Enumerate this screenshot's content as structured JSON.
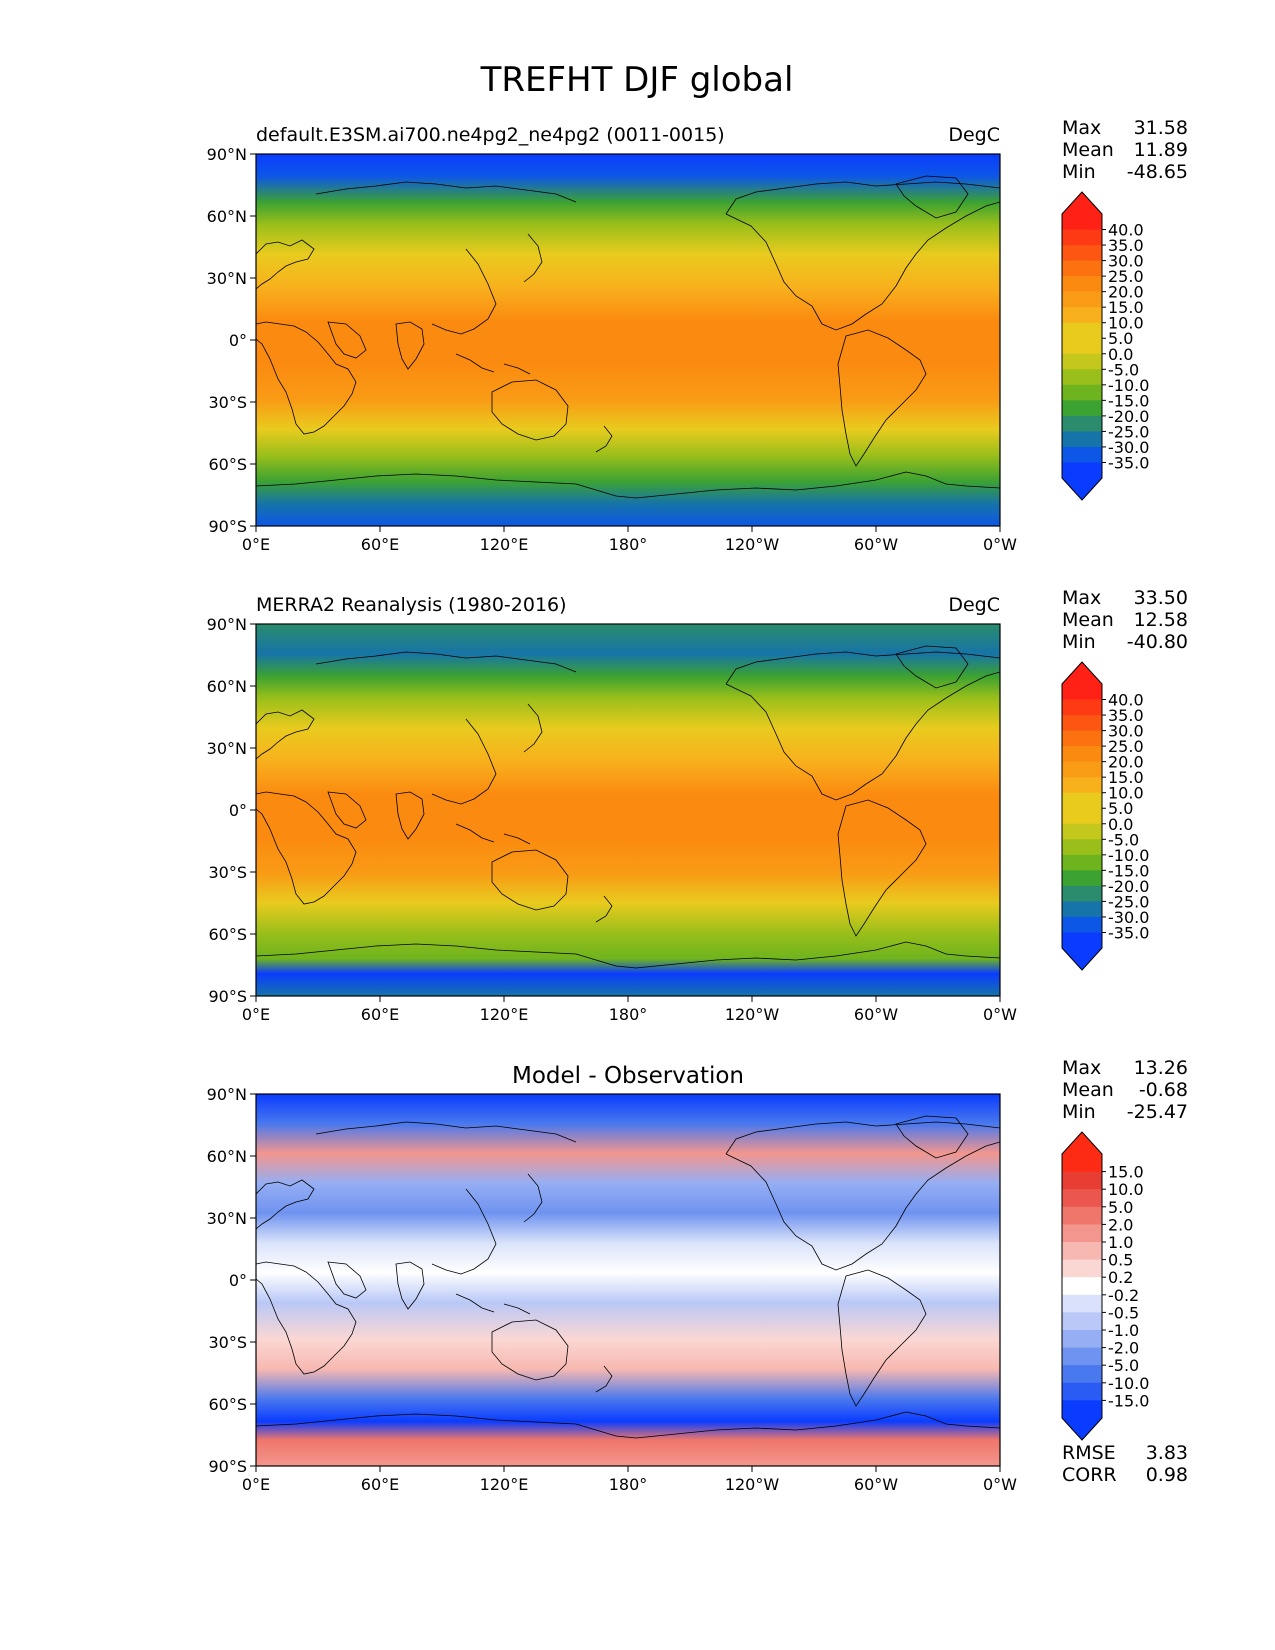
{
  "figure": {
    "title": "TREFHT DJF global"
  },
  "colors": {
    "abs_levels": [
      "#0a3cff",
      "#0d57e6",
      "#1774a8",
      "#2a8c6c",
      "#3ca232",
      "#6eb41e",
      "#9abf1a",
      "#c5c81c",
      "#e9cb1e",
      "#f8b01d",
      "#f99b15",
      "#fb8a10",
      "#fc7110",
      "#fd5512",
      "#fe3a14",
      "#ff2116"
    ],
    "diff_levels": [
      "#0a3cff",
      "#2a5cf5",
      "#4a78ee",
      "#6f93f0",
      "#95aef4",
      "#b9c8f7",
      "#d9e2fa",
      "#ffffff",
      "#fbd7d3",
      "#f7b8b1",
      "#f3968d",
      "#ef766b",
      "#eb574e",
      "#e83d33",
      "#fe2b14"
    ],
    "coast": "#000000"
  },
  "panels": [
    {
      "title_left": "default.E3SM.ai700.ne4pg2_ne4pg2 (0011-0015)",
      "title_center": "",
      "units": "DegC",
      "stats": [
        {
          "label": "Max",
          "value": "31.58"
        },
        {
          "label": "Mean",
          "value": "11.89"
        },
        {
          "label": "Min",
          "value": "-48.65"
        }
      ],
      "colorbar_ticks": [
        "40.0",
        "35.0",
        "30.0",
        "25.0",
        "20.0",
        "15.0",
        "10.0",
        "5.0",
        "0.0",
        "-5.0",
        "-10.0",
        "-15.0",
        "-20.0",
        "-25.0",
        "-30.0",
        "-35.0"
      ],
      "footer_stats": []
    },
    {
      "title_left": "MERRA2 Reanalysis (1980-2016)",
      "title_center": "",
      "units": "DegC",
      "stats": [
        {
          "label": "Max",
          "value": "33.50"
        },
        {
          "label": "Mean",
          "value": "12.58"
        },
        {
          "label": "Min",
          "value": "-40.80"
        }
      ],
      "colorbar_ticks": [
        "40.0",
        "35.0",
        "30.0",
        "25.0",
        "20.0",
        "15.0",
        "10.0",
        "5.0",
        "0.0",
        "-5.0",
        "-10.0",
        "-15.0",
        "-20.0",
        "-25.0",
        "-30.0",
        "-35.0"
      ],
      "footer_stats": []
    },
    {
      "title_left": "",
      "title_center": "Model - Observation",
      "units": "",
      "stats": [
        {
          "label": "Max",
          "value": "13.26"
        },
        {
          "label": "Mean",
          "value": "-0.68"
        },
        {
          "label": "Min",
          "value": "-25.47"
        }
      ],
      "colorbar_ticks": [
        "15.0",
        "10.0",
        "5.0",
        "2.0",
        "1.0",
        "0.5",
        "0.2",
        "-0.2",
        "-0.5",
        "-1.0",
        "-2.0",
        "-5.0",
        "-10.0",
        "-15.0"
      ],
      "footer_stats": [
        {
          "label": "RMSE",
          "value": "3.83"
        },
        {
          "label": "CORR",
          "value": "0.98"
        }
      ]
    }
  ],
  "axes": {
    "y_ticks": [
      "90°N",
      "60°N",
      "30°N",
      "0°",
      "30°S",
      "60°S",
      "90°S"
    ],
    "x_ticks": [
      "0°E",
      "60°E",
      "120°E",
      "180°",
      "120°W",
      "60°W",
      "0°W"
    ]
  }
}
